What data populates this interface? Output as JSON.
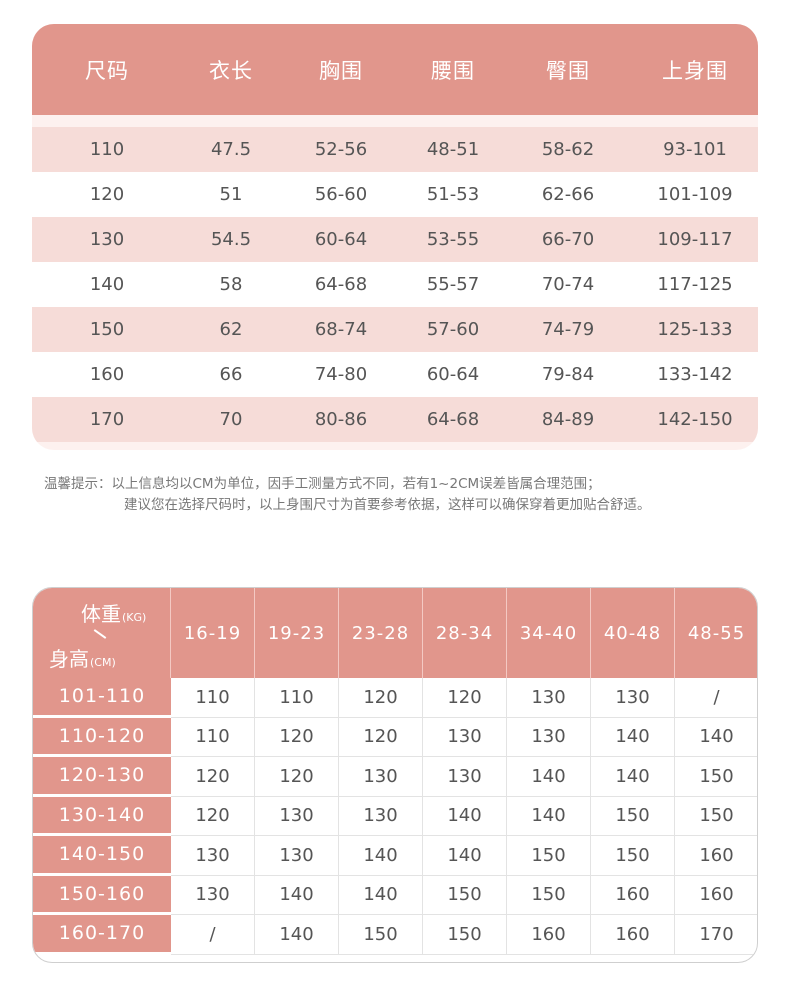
{
  "size_table": {
    "headers": [
      "尺码",
      "衣长",
      "胸围",
      "腰围",
      "臀围",
      "上身围"
    ],
    "rows": [
      [
        "110",
        "47.5",
        "52-56",
        "48-51",
        "58-62",
        "93-101"
      ],
      [
        "120",
        "51",
        "56-60",
        "51-53",
        "62-66",
        "101-109"
      ],
      [
        "130",
        "54.5",
        "60-64",
        "53-55",
        "66-70",
        "109-117"
      ],
      [
        "140",
        "58",
        "64-68",
        "55-57",
        "70-74",
        "117-125"
      ],
      [
        "150",
        "62",
        "68-74",
        "57-60",
        "74-79",
        "125-133"
      ],
      [
        "160",
        "66",
        "74-80",
        "60-64",
        "79-84",
        "133-142"
      ],
      [
        "170",
        "70",
        "80-86",
        "64-68",
        "84-89",
        "142-150"
      ]
    ]
  },
  "note": {
    "line1": "温馨提示：以上信息均以CM为单位，因手工测量方式不同，若有1~2CM误差皆属合理范围；",
    "line2": "建议您在选择尺码时，以上身围尺寸为首要参考依据，这样可以确保穿着更加贴合舒适。"
  },
  "reference_table": {
    "corner": {
      "weight_label": "体重",
      "weight_unit": "(KG)",
      "height_label": "身高",
      "height_unit": "(CM)"
    },
    "weight_ranges": [
      "16-19",
      "19-23",
      "23-28",
      "28-34",
      "34-40",
      "40-48",
      "48-55"
    ],
    "rows": [
      {
        "height": "101-110",
        "sizes": [
          "110",
          "110",
          "120",
          "120",
          "130",
          "130",
          "/"
        ]
      },
      {
        "height": "110-120",
        "sizes": [
          "110",
          "120",
          "120",
          "130",
          "130",
          "140",
          "140"
        ]
      },
      {
        "height": "120-130",
        "sizes": [
          "120",
          "120",
          "130",
          "130",
          "140",
          "140",
          "150"
        ]
      },
      {
        "height": "130-140",
        "sizes": [
          "120",
          "130",
          "130",
          "140",
          "140",
          "150",
          "150"
        ]
      },
      {
        "height": "140-150",
        "sizes": [
          "130",
          "130",
          "140",
          "140",
          "150",
          "150",
          "160"
        ]
      },
      {
        "height": "150-160",
        "sizes": [
          "130",
          "140",
          "140",
          "150",
          "150",
          "160",
          "160"
        ]
      },
      {
        "height": "160-170",
        "sizes": [
          "/",
          "140",
          "150",
          "150",
          "160",
          "160",
          "170"
        ]
      }
    ]
  },
  "colors": {
    "header_bg": "#e1968c",
    "row_alt_bg": "#f6dcd8",
    "table_bg": "#fdf1ef",
    "text": "#555555"
  }
}
